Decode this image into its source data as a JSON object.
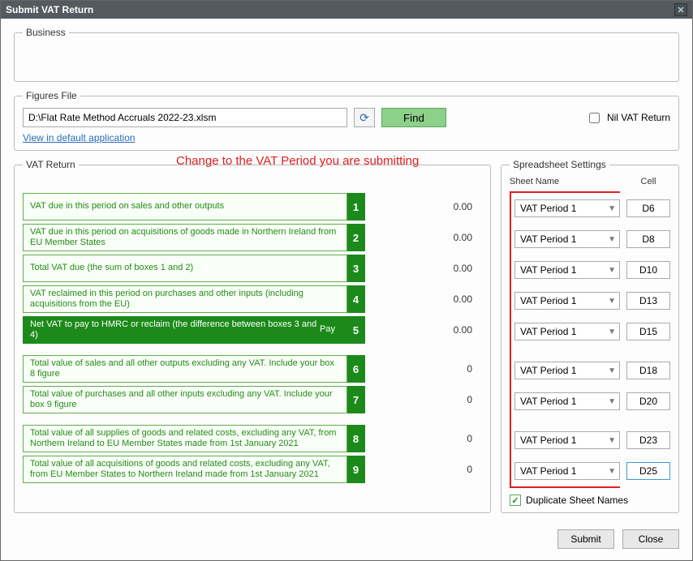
{
  "dialog": {
    "title": "Submit VAT Return"
  },
  "business": {
    "legend": "Business"
  },
  "figures_file": {
    "legend": "Figures File",
    "path": "D:\\Flat Rate Method Accruals 2022-23.xlsm",
    "find_label": "Find",
    "nil_label": "Nil VAT Return",
    "default_link": "View in default application"
  },
  "annotation": {
    "text": "Change to the VAT Period you are submitting"
  },
  "vat_return": {
    "legend": "VAT Return",
    "rows": [
      {
        "n": "1",
        "desc": "VAT due in this period on sales and other outputs",
        "value": "0.00",
        "style": "green",
        "gap": false
      },
      {
        "n": "2",
        "desc": "VAT due in this period on acquisitions of goods made in Northern Ireland from EU Member States",
        "value": "0.00",
        "style": "green",
        "gap": false
      },
      {
        "n": "3",
        "desc": "Total VAT due (the sum of boxes 1 and 2)",
        "value": "0.00",
        "style": "green",
        "gap": false
      },
      {
        "n": "4",
        "desc": "VAT reclaimed in this period on purchases and other inputs (including acquisitions from the EU)",
        "value": "0.00",
        "style": "green",
        "gap": false
      },
      {
        "n": "5",
        "desc": "Net VAT to pay to HMRC or reclaim\n(the difference between boxes 3 and 4)",
        "value": "0.00",
        "style": "dark",
        "pay": "Pay",
        "gap": false
      },
      {
        "n": "6",
        "desc": "Total value of sales and all other outputs excluding any VAT. Include your box 8 figure",
        "value": "0",
        "style": "green",
        "gap": true
      },
      {
        "n": "7",
        "desc": "Total value of purchases and all other inputs excluding any VAT. Include your box 9 figure",
        "value": "0",
        "style": "green",
        "gap": false
      },
      {
        "n": "8",
        "desc": "Total value of all supplies of goods and related costs, excluding any VAT, from Northern Ireland to EU Member States made from 1st January 2021",
        "value": "0",
        "style": "green",
        "gap": true
      },
      {
        "n": "9",
        "desc": "Total value of all acquisitions of goods and related costs, excluding any VAT, from EU Member States to Northern Ireland made from 1st January 2021",
        "value": "0",
        "style": "green",
        "gap": false
      }
    ]
  },
  "spreadsheet": {
    "legend": "Spreadsheet Settings",
    "header_sheet": "Sheet Name",
    "header_cell": "Cell",
    "rows": [
      {
        "sheet": "VAT Period 1",
        "cell": "D6",
        "gap": false
      },
      {
        "sheet": "VAT Period 1",
        "cell": "D8",
        "gap": false
      },
      {
        "sheet": "VAT Period 1",
        "cell": "D10",
        "gap": false
      },
      {
        "sheet": "VAT Period 1",
        "cell": "D13",
        "gap": false
      },
      {
        "sheet": "VAT Period 1",
        "cell": "D15",
        "gap": false
      },
      {
        "sheet": "VAT Period 1",
        "cell": "D18",
        "gap": true
      },
      {
        "sheet": "VAT Period 1",
        "cell": "D20",
        "gap": false
      },
      {
        "sheet": "VAT Period 1",
        "cell": "D23",
        "gap": true
      },
      {
        "sheet": "VAT Period 1",
        "cell": "D25",
        "gap": false,
        "focused": true
      }
    ],
    "dup_label": "Duplicate Sheet Names",
    "dup_checked": true
  },
  "footer": {
    "submit": "Submit",
    "close": "Close"
  },
  "colors": {
    "titlebar_bg": "#555a60",
    "green_border": "#5fae4b",
    "green_text": "#268a1a",
    "dark_row_bg": "#1c8a1a",
    "annotation": "#e02020",
    "find_btn_bg": "#8cd08a"
  }
}
